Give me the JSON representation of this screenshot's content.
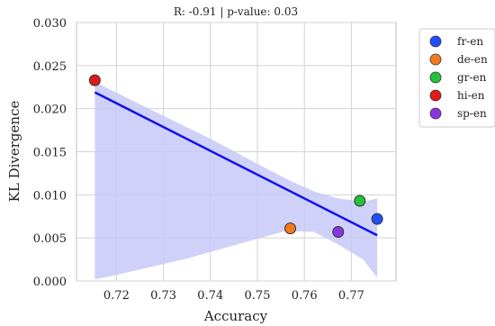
{
  "chart_data": {
    "type": "scatter",
    "title": "R: -0.91 | p-value: 0.03",
    "xlabel": "Accuracy",
    "ylabel": "KL Divergence",
    "xlim": [
      0.7115,
      0.7795
    ],
    "ylim": [
      0.0,
      0.03
    ],
    "xticks": [
      0.72,
      0.73,
      0.74,
      0.75,
      0.76,
      0.77
    ],
    "xtick_labels": [
      "0.72",
      "0.73",
      "0.74",
      "0.75",
      "0.76",
      "0.77"
    ],
    "yticks": [
      0.0,
      0.005,
      0.01,
      0.015,
      0.02,
      0.025,
      0.03
    ],
    "ytick_labels": [
      "0.000",
      "0.005",
      "0.010",
      "0.015",
      "0.020",
      "0.025",
      "0.030"
    ],
    "grid": true,
    "legend_position": "outside-right",
    "series": [
      {
        "name": "fr-en",
        "color": "#1f4fff",
        "x": [
          0.7755
        ],
        "y": [
          0.0072
        ]
      },
      {
        "name": "de-en",
        "color": "#f47a20",
        "x": [
          0.757
        ],
        "y": [
          0.0061
        ]
      },
      {
        "name": "gr-en",
        "color": "#22c23a",
        "x": [
          0.7718
        ],
        "y": [
          0.0093
        ]
      },
      {
        "name": "hi-en",
        "color": "#e01a1a",
        "x": [
          0.7154
        ],
        "y": [
          0.0233
        ]
      },
      {
        "name": "sp-en",
        "color": "#8a36e0",
        "x": [
          0.7672
        ],
        "y": [
          0.0057
        ]
      }
    ],
    "regression": {
      "color": "#1010ee",
      "x": [
        0.7154,
        0.7755
      ],
      "y": [
        0.0219,
        0.0053
      ],
      "ci_color": "#c7c9f7",
      "ci_upper": [
        [
          0.7154,
          0.0231
        ],
        [
          0.728,
          0.0197
        ],
        [
          0.74,
          0.0165
        ],
        [
          0.75,
          0.0136
        ],
        [
          0.756,
          0.0119
        ],
        [
          0.762,
          0.0104
        ],
        [
          0.767,
          0.0096
        ],
        [
          0.7725,
          0.0092
        ],
        [
          0.7755,
          0.0096
        ]
      ],
      "ci_lower": [
        [
          0.7154,
          0.0002
        ],
        [
          0.72,
          0.0007
        ],
        [
          0.735,
          0.0026
        ],
        [
          0.748,
          0.0046
        ],
        [
          0.756,
          0.0058
        ],
        [
          0.762,
          0.0057
        ],
        [
          0.767,
          0.0043
        ],
        [
          0.7725,
          0.0025
        ],
        [
          0.7755,
          0.0004
        ]
      ]
    }
  }
}
